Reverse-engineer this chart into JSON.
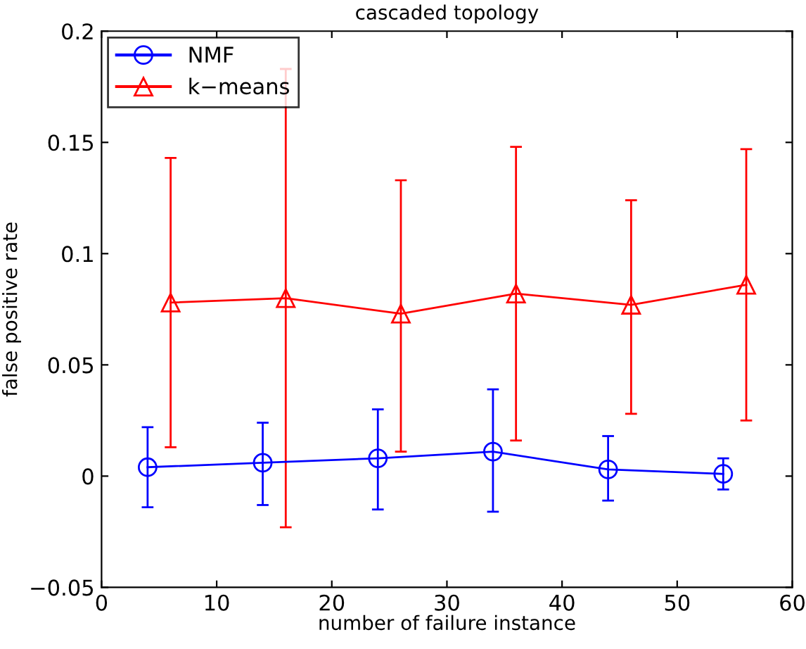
{
  "chart_data": {
    "type": "line",
    "title": "cascaded topology",
    "xlabel": "number of failure instance",
    "ylabel": "false positive rate",
    "xlim": [
      0,
      60
    ],
    "xticks": [
      0,
      10,
      20,
      30,
      40,
      50,
      60
    ],
    "ylim": [
      -0.05,
      0.2
    ],
    "yticks": [
      {
        "value": -0.05,
        "label": "−0.05"
      },
      0,
      0.05,
      0.1,
      0.15,
      0.2
    ],
    "grid": false,
    "legend": "top left",
    "line_style": "solid",
    "series": [
      {
        "name": "NMF",
        "color": "#0000ff",
        "marker": "circle",
        "x": [
          4,
          14,
          24,
          34,
          44,
          54
        ],
        "values": [
          0.004,
          0.006,
          0.008,
          0.011,
          0.003,
          0.001
        ],
        "errors": [
          [
            -0.014,
            0.022
          ],
          [
            -0.013,
            0.024
          ],
          [
            -0.015,
            0.03
          ],
          [
            -0.016,
            0.039
          ],
          [
            -0.011,
            0.018
          ],
          [
            -0.006,
            0.008
          ]
        ]
      },
      {
        "name": "k−means",
        "color": "#ff0000",
        "marker": "triangle",
        "x": [
          6,
          16,
          26,
          36,
          46,
          56
        ],
        "values": [
          0.078,
          0.08,
          0.073,
          0.082,
          0.077,
          0.086
        ],
        "errors": [
          [
            0.013,
            0.143
          ],
          [
            -0.023,
            0.183
          ],
          [
            0.011,
            0.133
          ],
          [
            0.016,
            0.148
          ],
          [
            0.028,
            0.124
          ],
          [
            0.025,
            0.147
          ]
        ]
      }
    ]
  }
}
